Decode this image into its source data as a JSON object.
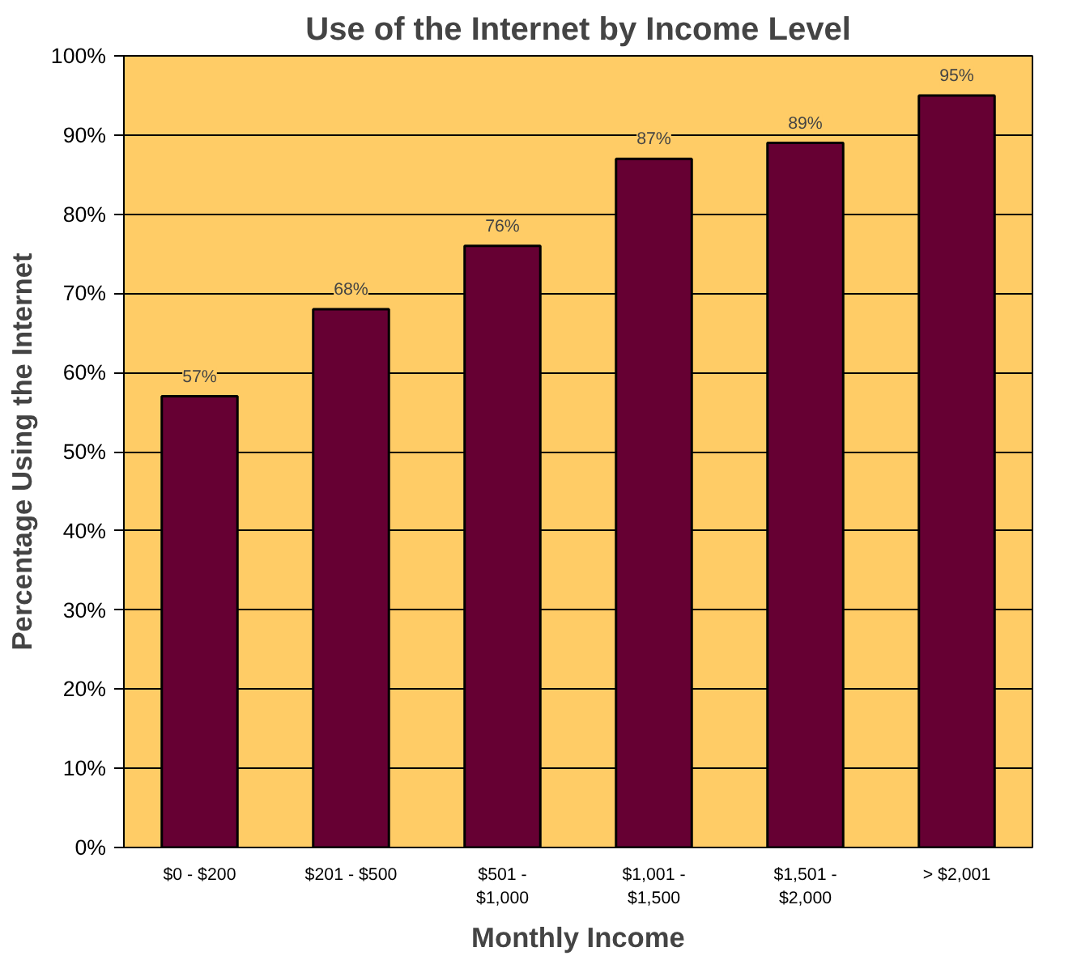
{
  "chart_data": {
    "type": "bar",
    "title": "Use of the Internet by Income Level",
    "xlabel": "Monthly Income",
    "ylabel": "Percentage Using the Internet",
    "categories": [
      "$0 - $200",
      "$201 - $500",
      "$501 -\n$1,000",
      "$1,001 -\n$1,500",
      "$1,501 -\n$2,000",
      "> $2,001"
    ],
    "values": [
      57,
      68,
      76,
      87,
      89,
      95
    ],
    "value_labels": [
      "57%",
      "68%",
      "76%",
      "87%",
      "89%",
      "95%"
    ],
    "color": "#660033",
    "ylim": [
      0,
      100
    ],
    "yticks": [
      {
        "value": 0,
        "label": "0%"
      },
      {
        "value": 10,
        "label": "10%"
      },
      {
        "value": 20,
        "label": "20%"
      },
      {
        "value": 30,
        "label": "30%"
      },
      {
        "value": 40,
        "label": "40%"
      },
      {
        "value": 50,
        "label": "50%"
      },
      {
        "value": 60,
        "label": "60%"
      },
      {
        "value": 70,
        "label": "70%"
      },
      {
        "value": 80,
        "label": "80%"
      },
      {
        "value": 90,
        "label": "90%"
      },
      {
        "value": 100,
        "label": "100%"
      }
    ],
    "grid": "y"
  }
}
